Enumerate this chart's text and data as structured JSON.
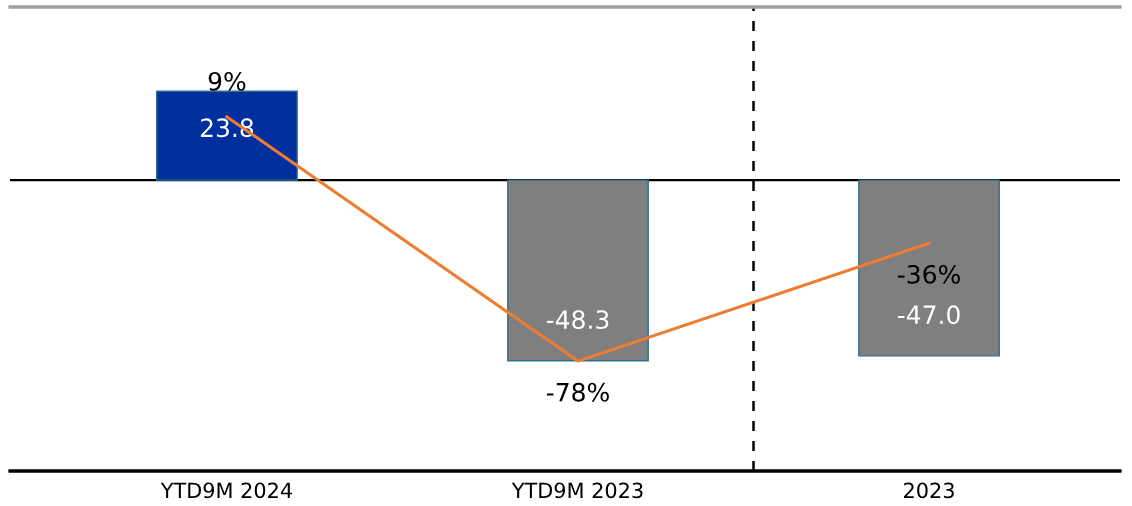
{
  "chart_data": {
    "type": "bar",
    "categories": [
      "YTD9M 2024",
      "YTD9M 2023",
      "2023"
    ],
    "series": [
      {
        "colors": [
          "#002f9e",
          "#7f7f7f",
          "#7f7f7f"
        ],
        "values": [
          23.8,
          -48.3,
          -47.0
        ],
        "value_labels": [
          "23.8",
          "-48.3",
          "-47.0"
        ]
      },
      {
        "type": "line",
        "axis": "y2",
        "color": "#ed7d31",
        "values": [
          9,
          -78,
          -36
        ],
        "value_labels": [
          "9%",
          "-78%",
          "-36%"
        ]
      }
    ],
    "ylim": [
      -77.8,
      46.3
    ],
    "tick_labels": "x",
    "grid": false,
    "legend": false
  }
}
